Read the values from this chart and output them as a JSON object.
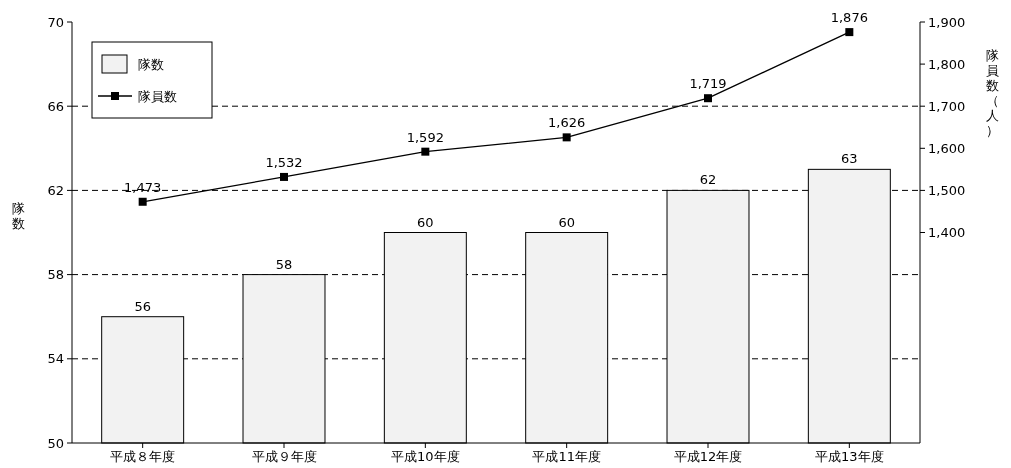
{
  "chart_data": {
    "type": "bar",
    "categories": [
      "平成８年度",
      "平成９年度",
      "平成10年度",
      "平成11年度",
      "平成12年度",
      "平成13年度"
    ],
    "series": [
      {
        "name": "隊数",
        "color": "#f2f2f2",
        "values": [
          56,
          58,
          60,
          60,
          62,
          63
        ]
      },
      {
        "name": "隊員数",
        "type": "line",
        "axis": "y2",
        "color": "#000000",
        "values": [
          1473,
          1532,
          1592,
          1626,
          1719,
          1876
        ],
        "value_labels": [
          "1,473",
          "1,532",
          "1,592",
          "1,626",
          "1,719",
          "1,876"
        ]
      }
    ],
    "ylabel": "隊数",
    "y2label": "隊員数（人）",
    "ylim": [
      50,
      70
    ],
    "yticks": [
      50,
      54,
      58,
      62,
      66,
      70
    ],
    "y2lim": [
      900,
      1900
    ],
    "y2ticks": [
      {
        "value": 1400,
        "label": "1,400"
      },
      {
        "value": 1500,
        "label": "1,500"
      },
      {
        "value": 1600,
        "label": "1,600"
      },
      {
        "value": 1700,
        "label": "1,700"
      },
      {
        "value": 1800,
        "label": "1,800"
      },
      {
        "value": 1900,
        "label": "1,900"
      }
    ],
    "grid": "y",
    "legend": "top left",
    "marker": "square",
    "line_style": "solid",
    "data_labels": true
  }
}
